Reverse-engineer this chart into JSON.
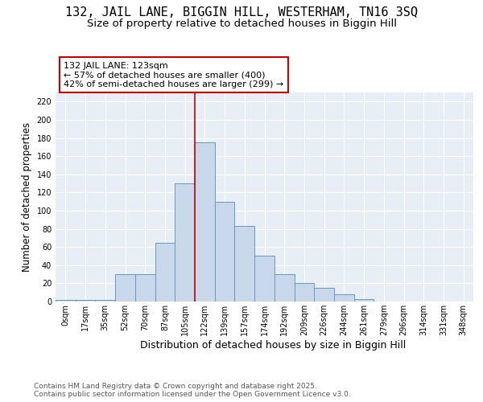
{
  "title1": "132, JAIL LANE, BIGGIN HILL, WESTERHAM, TN16 3SQ",
  "title2": "Size of property relative to detached houses in Biggin Hill",
  "xlabel": "Distribution of detached houses by size in Biggin Hill",
  "ylabel": "Number of detached properties",
  "bin_labels": [
    "0sqm",
    "17sqm",
    "35sqm",
    "52sqm",
    "70sqm",
    "87sqm",
    "105sqm",
    "122sqm",
    "139sqm",
    "157sqm",
    "174sqm",
    "192sqm",
    "209sqm",
    "226sqm",
    "244sqm",
    "261sqm",
    "279sqm",
    "296sqm",
    "314sqm",
    "331sqm",
    "348sqm"
  ],
  "bar_heights": [
    2,
    2,
    2,
    30,
    30,
    65,
    130,
    175,
    110,
    83,
    50,
    30,
    20,
    15,
    8,
    3,
    0,
    0,
    0,
    0,
    0
  ],
  "bar_color": "#c8d8ea",
  "bar_edge_color": "#6699bb",
  "vline_x": 7.0,
  "vline_color": "#cc0000",
  "annotation_line1": "132 JAIL LANE: 123sqm",
  "annotation_line2": "← 57% of detached houses are smaller (400)",
  "annotation_line3": "42% of semi-detached houses are larger (299) →",
  "annotation_box_color": "white",
  "annotation_box_edge": "#cc0000",
  "ylim": [
    0,
    230
  ],
  "yticks": [
    0,
    20,
    40,
    60,
    80,
    100,
    120,
    140,
    160,
    180,
    200,
    220
  ],
  "background_color": "#e8eef5",
  "grid_color": "#d0d8e0",
  "footnote": "Contains HM Land Registry data © Crown copyright and database right 2025.\nContains public sector information licensed under the Open Government Licence v3.0.",
  "title1_fontsize": 11,
  "title2_fontsize": 9.5,
  "xlabel_fontsize": 9,
  "ylabel_fontsize": 8.5,
  "tick_fontsize": 7,
  "annotation_fontsize": 8,
  "footnote_fontsize": 6.5
}
